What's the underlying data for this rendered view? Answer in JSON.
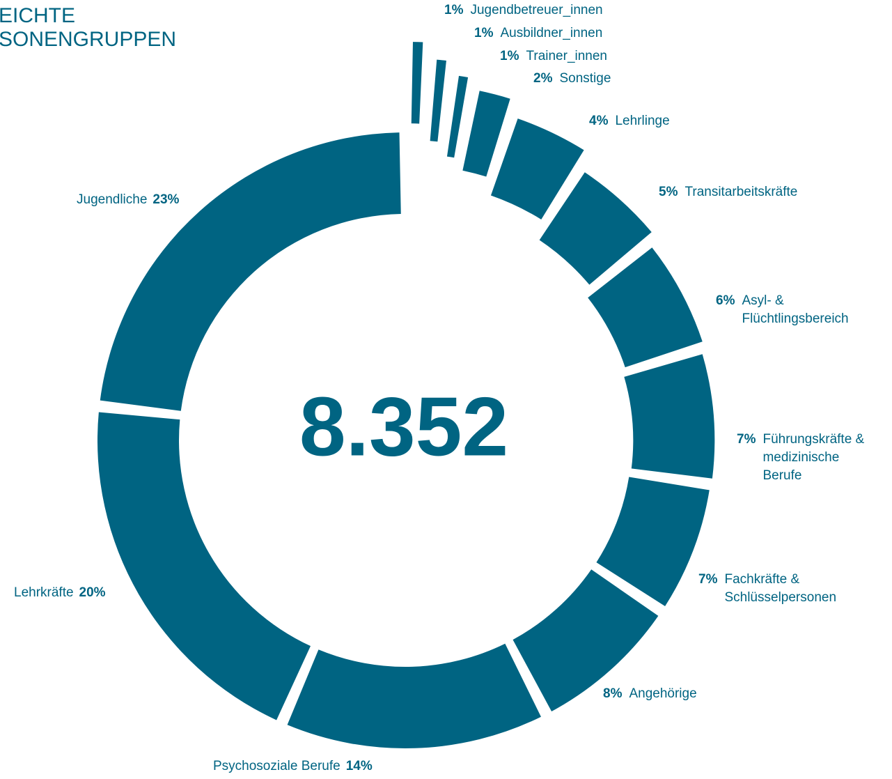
{
  "title_lines": [
    "EICHTE",
    "SONENGRUPPEN"
  ],
  "chart_data": {
    "type": "donut",
    "center_label": "8.352",
    "color": "#006482",
    "categories": [
      "Jugendbetreuer_innen",
      "Ausbildner_innen",
      "Trainer_innen",
      "Sonstige",
      "Lehrlinge",
      "Transitarbeitskräfte",
      "Asyl- & Flüchtlingsbereich",
      "Führungskräfte & medizinische Berufe",
      "Fachkräfte & Schlüsselpersonen",
      "Angehörige",
      "Psychosoziale Berufe",
      "Lehrkräfte",
      "Jugendliche"
    ],
    "values": [
      1,
      1,
      1,
      2,
      4,
      5,
      6,
      7,
      7,
      8,
      14,
      20,
      23
    ],
    "value_labels": [
      "1%",
      "1%",
      "1%",
      "2%",
      "4%",
      "5%",
      "6%",
      "7%",
      "7%",
      "8%",
      "14%",
      "20%",
      "23%"
    ]
  }
}
